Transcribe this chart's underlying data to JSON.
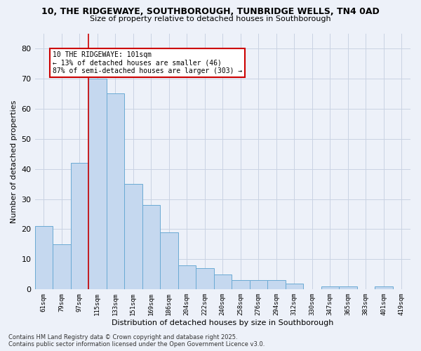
{
  "title_line1": "10, THE RIDGEWAYE, SOUTHBOROUGH, TUNBRIDGE WELLS, TN4 0AD",
  "title_line2": "Size of property relative to detached houses in Southborough",
  "xlabel": "Distribution of detached houses by size in Southborough",
  "ylabel": "Number of detached properties",
  "categories": [
    "61sqm",
    "79sqm",
    "97sqm",
    "115sqm",
    "133sqm",
    "151sqm",
    "169sqm",
    "186sqm",
    "204sqm",
    "222sqm",
    "240sqm",
    "258sqm",
    "276sqm",
    "294sqm",
    "312sqm",
    "330sqm",
    "347sqm",
    "365sqm",
    "383sqm",
    "401sqm",
    "419sqm"
  ],
  "values": [
    21,
    15,
    42,
    70,
    65,
    35,
    28,
    19,
    8,
    7,
    5,
    3,
    3,
    3,
    2,
    0,
    1,
    1,
    0,
    1,
    0
  ],
  "bar_color": "#c5d8ef",
  "bar_edge_color": "#6aaad4",
  "vline_index": 3,
  "vline_color": "#cc0000",
  "annotation_text": "10 THE RIDGEWAYE: 101sqm\n← 13% of detached houses are smaller (46)\n87% of semi-detached houses are larger (303) →",
  "annotation_facecolor": "white",
  "annotation_edgecolor": "#cc0000",
  "background_color": "#edf1f9",
  "grid_color": "#c9d3e3",
  "footer_line1": "Contains HM Land Registry data © Crown copyright and database right 2025.",
  "footer_line2": "Contains public sector information licensed under the Open Government Licence v3.0.",
  "ylim": [
    0,
    85
  ],
  "yticks": [
    0,
    10,
    20,
    30,
    40,
    50,
    60,
    70,
    80
  ]
}
